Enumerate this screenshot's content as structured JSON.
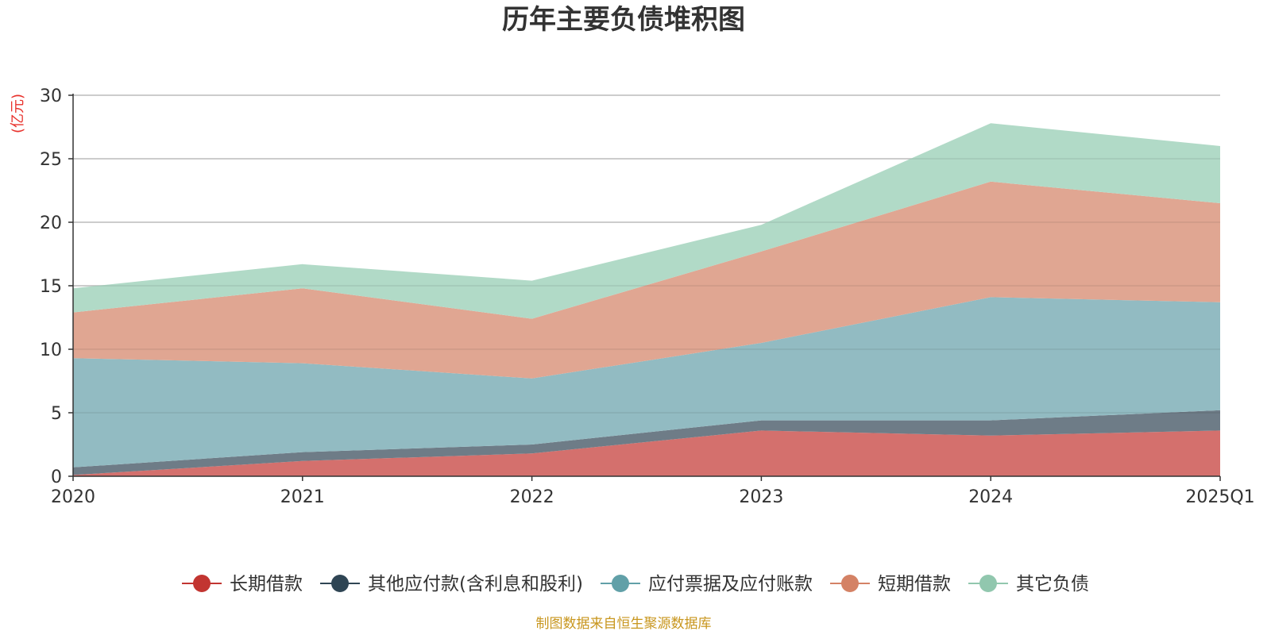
{
  "source_note": "制图数据来自恒生聚源数据库",
  "chart_data": {
    "type": "area",
    "stacked": true,
    "title": "历年主要负债堆积图",
    "unit_label": "(亿元)",
    "categories": [
      "2020",
      "2021",
      "2022",
      "2023",
      "2024",
      "2025Q1"
    ],
    "ylim": [
      0,
      30
    ],
    "yticks": [
      0,
      5,
      10,
      15,
      20,
      25,
      30
    ],
    "grid": true,
    "legend_position": "bottom",
    "series": [
      {
        "name": "长期借款",
        "color": "#c23531",
        "fill": "#d4706d",
        "values": [
          0.1,
          1.2,
          1.8,
          3.6,
          3.2,
          3.6
        ]
      },
      {
        "name": "其他应付款(含利息和股利)",
        "color": "#2f4554",
        "fill": "#6e7c87",
        "values": [
          0.6,
          0.7,
          0.7,
          0.8,
          1.2,
          1.6
        ]
      },
      {
        "name": "应付票据及应付账款",
        "color": "#61a0a8",
        "fill": "#92bbc2",
        "values": [
          8.6,
          7.0,
          5.2,
          6.1,
          9.7,
          8.5
        ]
      },
      {
        "name": "短期借款",
        "color": "#d48265",
        "fill": "#e0a692",
        "values": [
          3.6,
          5.9,
          4.7,
          7.2,
          9.1,
          7.8
        ]
      },
      {
        "name": "其它负债",
        "color": "#91c7ae",
        "fill": "#b1dac7",
        "values": [
          1.9,
          1.9,
          3.0,
          2.1,
          4.6,
          4.5
        ]
      }
    ]
  }
}
